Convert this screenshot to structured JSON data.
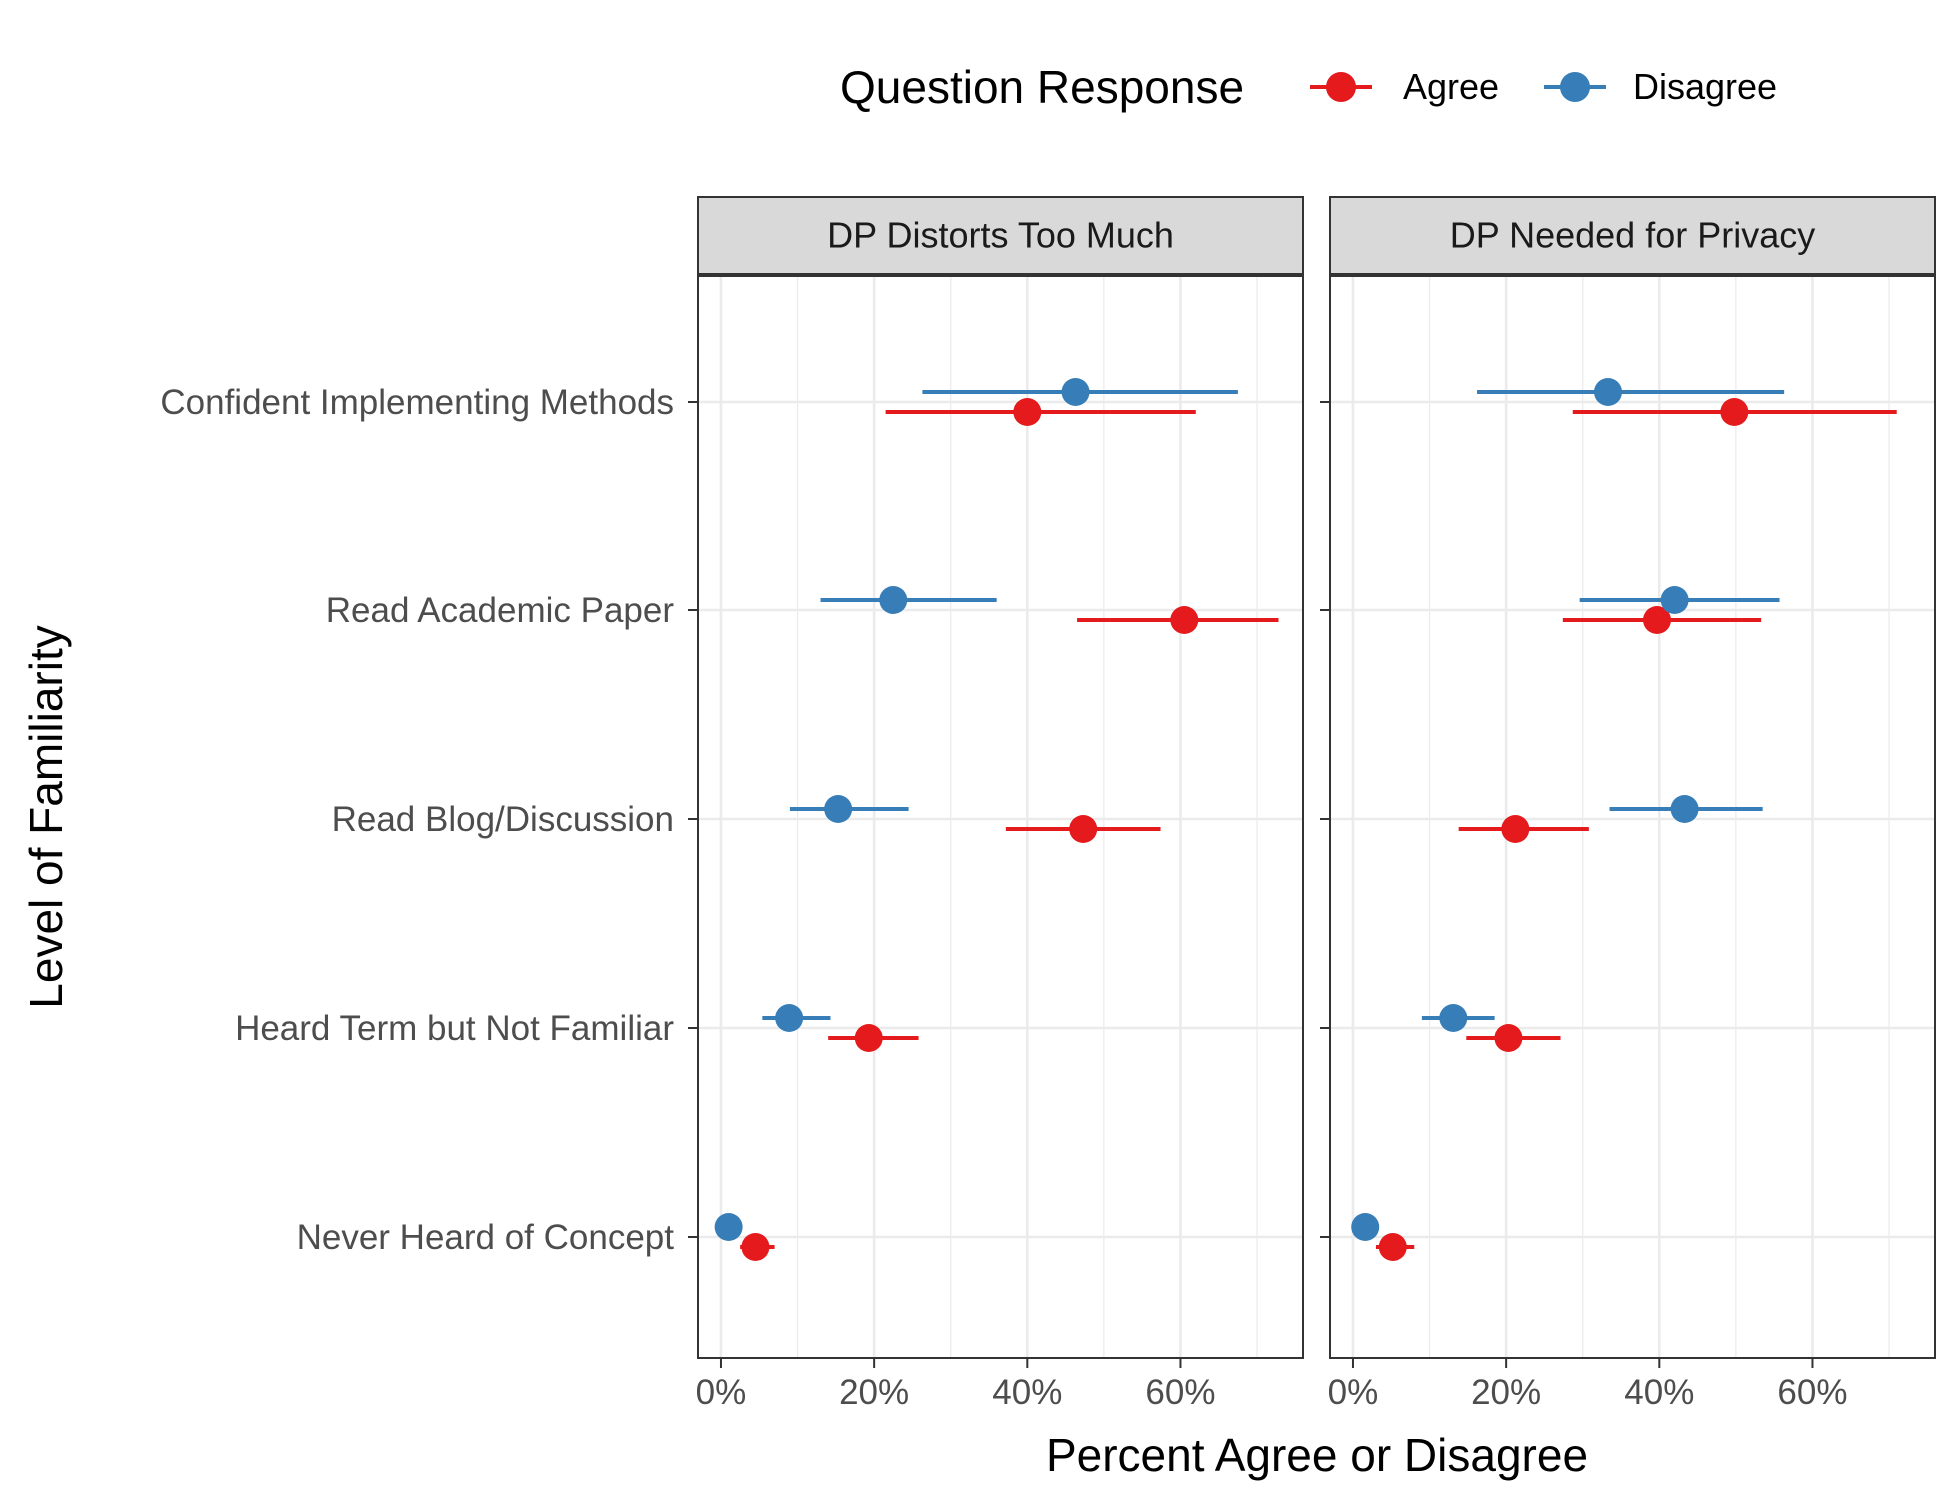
{
  "chart_data": {
    "type": "scatter",
    "subtype": "point-range dot plot, faceted",
    "xlabel": "Percent Agree or Disagree",
    "ylabel": "Level of Familiarity",
    "xlim": [
      -0.03,
      0.76
    ],
    "x_ticks": [
      0,
      0.2,
      0.4,
      0.6
    ],
    "x_tick_labels": [
      "0%",
      "20%",
      "40%",
      "60%"
    ],
    "categories": [
      "Confident Implementing Methods",
      "Read Academic Paper",
      "Read Blog/Discussion",
      "Heard Term but Not Familiar",
      "Never Heard of Concept"
    ],
    "grid": true,
    "legend": {
      "title": "Question Response",
      "position": "top",
      "entries": [
        {
          "name": "Agree",
          "color": "#e41a1c"
        },
        {
          "name": "Disagree",
          "color": "#377eb8"
        }
      ]
    },
    "facets": [
      {
        "title": "DP Distorts Too Much",
        "series": [
          {
            "name": "Agree",
            "color": "#e41a1c",
            "points": [
              {
                "category": "Confident Implementing Methods",
                "value": 0.4,
                "low": 0.215,
                "high": 0.62
              },
              {
                "category": "Read Academic Paper",
                "value": 0.605,
                "low": 0.465,
                "high": 0.728
              },
              {
                "category": "Read Blog/Discussion",
                "value": 0.473,
                "low": 0.372,
                "high": 0.574
              },
              {
                "category": "Heard Term but Not Familiar",
                "value": 0.193,
                "low": 0.14,
                "high": 0.258
              },
              {
                "category": "Never Heard of Concept",
                "value": 0.045,
                "low": 0.025,
                "high": 0.07
              }
            ]
          },
          {
            "name": "Disagree",
            "color": "#377eb8",
            "points": [
              {
                "category": "Confident Implementing Methods",
                "value": 0.463,
                "low": 0.263,
                "high": 0.675
              },
              {
                "category": "Read Academic Paper",
                "value": 0.225,
                "low": 0.13,
                "high": 0.36
              },
              {
                "category": "Read Blog/Discussion",
                "value": 0.153,
                "low": 0.09,
                "high": 0.245
              },
              {
                "category": "Heard Term but Not Familiar",
                "value": 0.089,
                "low": 0.054,
                "high": 0.143
              },
              {
                "category": "Never Heard of Concept",
                "value": 0.01,
                "low": 0.002,
                "high": 0.02
              }
            ]
          }
        ]
      },
      {
        "title": "DP Needed for Privacy",
        "series": [
          {
            "name": "Agree",
            "color": "#e41a1c",
            "points": [
              {
                "category": "Confident Implementing Methods",
                "value": 0.498,
                "low": 0.287,
                "high": 0.71
              },
              {
                "category": "Read Academic Paper",
                "value": 0.397,
                "low": 0.274,
                "high": 0.533
              },
              {
                "category": "Read Blog/Discussion",
                "value": 0.212,
                "low": 0.138,
                "high": 0.308
              },
              {
                "category": "Heard Term but Not Familiar",
                "value": 0.203,
                "low": 0.148,
                "high": 0.271
              },
              {
                "category": "Never Heard of Concept",
                "value": 0.052,
                "low": 0.03,
                "high": 0.08
              }
            ]
          },
          {
            "name": "Disagree",
            "color": "#377eb8",
            "points": [
              {
                "category": "Confident Implementing Methods",
                "value": 0.333,
                "low": 0.162,
                "high": 0.563
              },
              {
                "category": "Read Academic Paper",
                "value": 0.42,
                "low": 0.296,
                "high": 0.557
              },
              {
                "category": "Read Blog/Discussion",
                "value": 0.433,
                "low": 0.335,
                "high": 0.535
              },
              {
                "category": "Heard Term but Not Familiar",
                "value": 0.131,
                "low": 0.09,
                "high": 0.185
              },
              {
                "category": "Never Heard of Concept",
                "value": 0.016,
                "low": 0.005,
                "high": 0.03
              }
            ]
          }
        ]
      }
    ]
  }
}
